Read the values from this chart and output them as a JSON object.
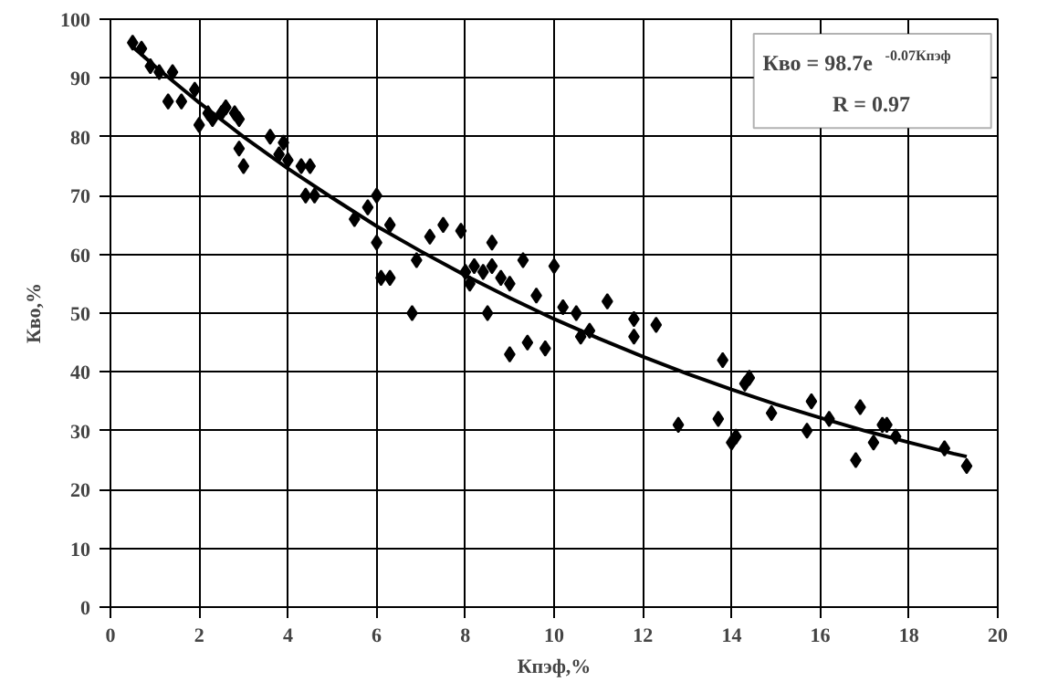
{
  "chart_data": {
    "type": "scatter",
    "xlabel": "Кпэф,%",
    "ylabel": "Кво,%",
    "xlim": [
      0,
      20
    ],
    "ylim": [
      0,
      100
    ],
    "xticks": [
      0,
      2,
      4,
      6,
      8,
      10,
      12,
      14,
      16,
      18,
      20
    ],
    "yticks": [
      0,
      10,
      20,
      30,
      40,
      50,
      60,
      70,
      80,
      90,
      100
    ],
    "grid": true,
    "marker": "diamond",
    "annotations": [
      "Кво = 98.7e$^{-0.07Кпэф}$",
      "R = 0.97"
    ],
    "series": [
      {
        "color": "#000000",
        "x": [
          0.5,
          0.7,
          0.9,
          1.1,
          1.4,
          1.3,
          1.6,
          1.9,
          2.0,
          2.2,
          2.5,
          2.6,
          2.8,
          2.9,
          2.3,
          3.0,
          2.9,
          3.6,
          3.8,
          3.9,
          4.0,
          4.3,
          4.5,
          4.4,
          4.6,
          5.5,
          5.8,
          6.0,
          6.0,
          6.1,
          6.3,
          6.3,
          6.8,
          6.9,
          7.2,
          7.5,
          7.9,
          8.0,
          8.2,
          8.1,
          8.4,
          8.5,
          8.6,
          8.6,
          8.8,
          9.0,
          9.0,
          9.4,
          9.3,
          9.6,
          9.8,
          10.0,
          10.2,
          10.5,
          10.6,
          10.8,
          11.2,
          11.8,
          11.8,
          12.3,
          12.8,
          13.8,
          13.7,
          14.1,
          14.0,
          14.3,
          14.4,
          14.9,
          15.7,
          15.8,
          16.2,
          16.8,
          16.9,
          17.2,
          17.4,
          17.5,
          17.7,
          18.8,
          19.3
        ],
        "values": [
          96,
          95,
          92,
          91,
          91,
          86,
          86,
          88,
          82,
          84,
          84,
          85,
          84,
          83,
          83,
          75,
          78,
          80,
          77,
          79,
          76,
          75,
          75,
          70,
          70,
          66,
          68,
          70,
          62,
          56,
          56,
          65,
          50,
          59,
          63,
          65,
          64,
          57,
          58,
          55,
          57,
          50,
          58,
          62,
          56,
          55,
          43,
          45,
          59,
          53,
          44,
          58,
          51,
          50,
          46,
          47,
          52,
          46,
          49,
          48,
          31,
          42,
          32,
          29,
          28,
          38,
          39,
          33,
          30,
          35,
          32,
          25,
          34,
          28,
          31,
          31,
          29,
          27,
          24
        ]
      },
      {
        "type": "line",
        "color": "#000000",
        "marker": "none",
        "x": [
          0.5,
          1,
          2,
          3,
          4,
          5,
          6,
          7,
          8,
          9,
          10,
          11,
          12,
          13,
          14,
          15,
          16,
          17,
          18,
          19,
          19.3
        ],
        "values": [
          95.3,
          92.0,
          85.8,
          80.0,
          74.6,
          69.6,
          64.8,
          60.5,
          56.4,
          52.6,
          49.0,
          45.7,
          42.6,
          39.7,
          37.0,
          34.5,
          32.2,
          30.0,
          28.0,
          26.1,
          25.6
        ]
      }
    ]
  }
}
